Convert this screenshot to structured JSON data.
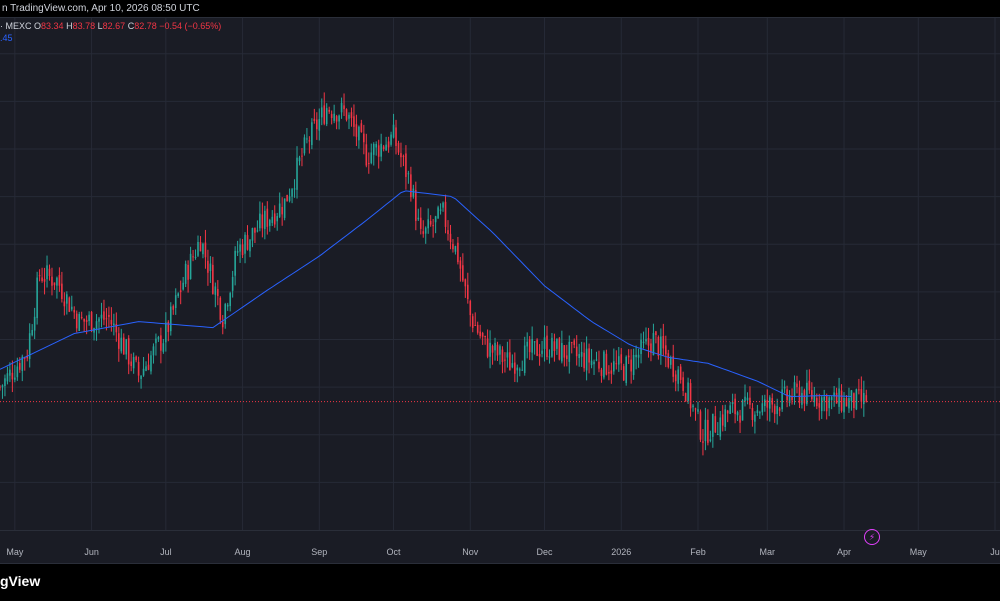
{
  "header": {
    "published": "n TradingView.com, Apr 10, 2026 08:50 UTC"
  },
  "legend": {
    "symbol_tail": "· MEXC",
    "o_label": "O",
    "o_value": "83.34",
    "h_label": "H",
    "h_value": "83.78",
    "l_label": "L",
    "l_value": "82.67",
    "c_label": "C",
    "c_value": "82.78",
    "change": "−0.54 (−0.65%)",
    "ma_value": ".45"
  },
  "footer": {
    "brand": "gView"
  },
  "colors": {
    "up": "#26a69a",
    "down": "#f23645",
    "ma": "#2962ff",
    "grid": "#262a36",
    "price_line": "#f23645",
    "background": "#1a1c25"
  },
  "icons": {
    "alert": "lightning-icon"
  },
  "chart_data": {
    "type": "candlestick",
    "x_ticks": [
      "May",
      "Jun",
      "Jul",
      "Aug",
      "Sep",
      "Oct",
      "Nov",
      "Dec",
      "2026",
      "Feb",
      "Mar",
      "Apr",
      "May",
      "Ju"
    ],
    "last_close": 82.78,
    "series": [
      {
        "name": "price",
        "close_path": [
          [
            "2025-04-25",
            84.0
          ],
          [
            "2025-05-06",
            87.0
          ],
          [
            "2025-05-11",
            93.5
          ],
          [
            "2025-05-18",
            93.0
          ],
          [
            "2025-05-27",
            89.5
          ],
          [
            "2025-06-08",
            89.8
          ],
          [
            "2025-06-20",
            85.0
          ],
          [
            "2025-07-01",
            88.5
          ],
          [
            "2025-07-09",
            93.5
          ],
          [
            "2025-07-15",
            96.5
          ],
          [
            "2025-07-24",
            90.0
          ],
          [
            "2025-07-30",
            95.5
          ],
          [
            "2025-08-10",
            98.0
          ],
          [
            "2025-08-18",
            99.5
          ],
          [
            "2025-08-27",
            104.5
          ],
          [
            "2025-09-04",
            107.5
          ],
          [
            "2025-09-12",
            107.0
          ],
          [
            "2025-09-20",
            103.5
          ],
          [
            "2025-10-01",
            105.0
          ],
          [
            "2025-10-08",
            101.0
          ],
          [
            "2025-10-12",
            96.5
          ],
          [
            "2025-10-21",
            98.5
          ],
          [
            "2025-10-27",
            95.0
          ],
          [
            "2025-11-01",
            90.0
          ],
          [
            "2025-11-07",
            87.5
          ],
          [
            "2025-11-17",
            86.0
          ],
          [
            "2025-12-01",
            87.5
          ],
          [
            "2025-12-15",
            86.5
          ],
          [
            "2026-01-02",
            85.5
          ],
          [
            "2026-01-14",
            88.0
          ],
          [
            "2026-01-25",
            85.0
          ],
          [
            "2026-02-03",
            80.0
          ],
          [
            "2026-02-14",
            82.0
          ],
          [
            "2026-02-28",
            82.3
          ],
          [
            "2026-03-14",
            83.5
          ],
          [
            "2026-03-28",
            82.8
          ],
          [
            "2026-04-10",
            82.78
          ]
        ]
      },
      {
        "name": "moving-average",
        "path": [
          [
            "2025-04-25",
            85.5
          ],
          [
            "2025-05-25",
            88.5
          ],
          [
            "2025-06-20",
            89.5
          ],
          [
            "2025-07-20",
            89.0
          ],
          [
            "2025-08-10",
            92.0
          ],
          [
            "2025-09-01",
            95.0
          ],
          [
            "2025-09-20",
            98.0
          ],
          [
            "2025-10-05",
            100.5
          ],
          [
            "2025-10-25",
            100.0
          ],
          [
            "2025-11-10",
            97.0
          ],
          [
            "2025-12-01",
            92.5
          ],
          [
            "2025-12-20",
            89.5
          ],
          [
            "2026-01-05",
            87.5
          ],
          [
            "2026-01-20",
            86.5
          ],
          [
            "2026-02-05",
            86.0
          ],
          [
            "2026-02-25",
            84.5
          ],
          [
            "2026-03-10",
            83.2
          ],
          [
            "2026-03-25",
            83.3
          ],
          [
            "2026-04-05",
            83.2
          ]
        ]
      }
    ]
  }
}
